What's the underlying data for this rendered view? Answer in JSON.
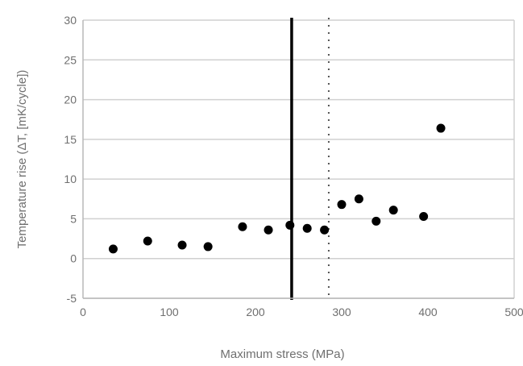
{
  "chart_data": {
    "type": "scatter",
    "title": "",
    "xlabel": "Maximum stress (MPa)",
    "ylabel": "Temperature rise (ΔT, [mK/cycle])",
    "xlim": [
      0,
      500
    ],
    "ylim": [
      -5,
      30
    ],
    "x_ticks": [
      0,
      100,
      200,
      300,
      400,
      500
    ],
    "y_ticks": [
      -5,
      0,
      5,
      10,
      15,
      20,
      25,
      30
    ],
    "x_tick_labels": [
      "0",
      "100",
      "200",
      "300",
      "400",
      "500"
    ],
    "y_tick_labels": [
      "-5",
      "0",
      "5",
      "10",
      "15",
      "20",
      "25",
      "30"
    ],
    "grid": "horizontal",
    "legend": "none",
    "marker_color": "#000000",
    "grid_color": "#d0d0d0",
    "series": [
      {
        "points": [
          {
            "x": 35,
            "y": 1.2
          },
          {
            "x": 75,
            "y": 2.2
          },
          {
            "x": 115,
            "y": 1.7
          },
          {
            "x": 145,
            "y": 1.5
          },
          {
            "x": 185,
            "y": 4.0
          },
          {
            "x": 215,
            "y": 3.6
          },
          {
            "x": 240,
            "y": 4.2
          },
          {
            "x": 260,
            "y": 3.8
          },
          {
            "x": 280,
            "y": 3.6
          },
          {
            "x": 300,
            "y": 6.8
          },
          {
            "x": 320,
            "y": 7.5
          },
          {
            "x": 340,
            "y": 4.7
          },
          {
            "x": 360,
            "y": 6.1
          },
          {
            "x": 395,
            "y": 5.3
          },
          {
            "x": 415,
            "y": 16.4
          }
        ]
      }
    ],
    "reference_lines": [
      {
        "style": "solid",
        "x": 242
      },
      {
        "style": "dotted",
        "x": 285
      }
    ]
  }
}
